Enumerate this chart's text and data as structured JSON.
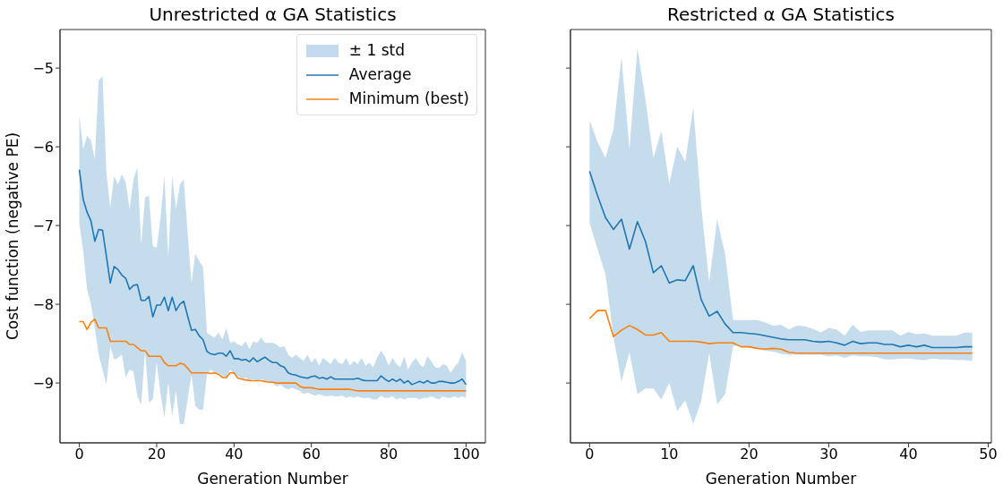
{
  "chart_data": [
    {
      "type": "line",
      "title": "Unrestricted α GA Statistics",
      "annotations": [
        "± 1 std"
      ],
      "xlabel": "Generation Number",
      "ylabel": "Cost function (negative PE)",
      "legend": "top right",
      "xlim": [
        -5,
        105
      ],
      "xticks": [
        0,
        20,
        40,
        60,
        80,
        100
      ],
      "ylim": [
        -9.76,
        -4.51
      ],
      "yticks": [
        -9,
        -8,
        -7,
        -6,
        -5
      ],
      "x": [
        0,
        1,
        2,
        3,
        4,
        5,
        6,
        7,
        8,
        9,
        10,
        11,
        12,
        13,
        14,
        15,
        16,
        17,
        18,
        19,
        20,
        21,
        22,
        23,
        24,
        25,
        26,
        27,
        28,
        29,
        30,
        31,
        32,
        33,
        34,
        35,
        36,
        37,
        38,
        39,
        40,
        41,
        42,
        43,
        44,
        45,
        46,
        47,
        48,
        49,
        50,
        51,
        52,
        53,
        54,
        55,
        56,
        57,
        58,
        59,
        60,
        61,
        62,
        63,
        64,
        65,
        66,
        67,
        68,
        69,
        70,
        71,
        72,
        73,
        74,
        75,
        76,
        77,
        78,
        79,
        80,
        81,
        82,
        83,
        84,
        85,
        86,
        87,
        88,
        89,
        90,
        91,
        92,
        93,
        94,
        95,
        96,
        97,
        98,
        99,
        100
      ],
      "series": [
        {
          "name": "Average",
          "color": "#1f77b4",
          "lower": [
            -6.98,
            -7.32,
            -7.81,
            -8.0,
            -8.3,
            -8.64,
            -8.83,
            -9.02,
            -8.53,
            -8.7,
            -8.68,
            -8.64,
            -8.93,
            -8.83,
            -8.85,
            -9.17,
            -9.27,
            -8.59,
            -9.25,
            -9.21,
            -8.74,
            -9.14,
            -9.44,
            -9.0,
            -9.42,
            -9.1,
            -9.52,
            -9.52,
            -9.21,
            -8.89,
            -9.29,
            -9.34,
            -9.34,
            -8.89,
            -8.83,
            -8.87,
            -8.87,
            -8.91,
            -8.93,
            -8.83,
            -8.89,
            -8.91,
            -8.95,
            -8.93,
            -8.97,
            -8.95,
            -8.97,
            -8.95,
            -8.97,
            -8.98,
            -9.0,
            -9.04,
            -9.02,
            -9.06,
            -9.08,
            -9.06,
            -9.08,
            -9.1,
            -9.14,
            -9.12,
            -9.14,
            -9.16,
            -9.14,
            -9.16,
            -9.17,
            -9.16,
            -9.17,
            -9.17,
            -9.16,
            -9.19,
            -9.17,
            -9.19,
            -9.17,
            -9.19,
            -9.19,
            -9.19,
            -9.21,
            -9.21,
            -9.16,
            -9.19,
            -9.19,
            -9.17,
            -9.21,
            -9.19,
            -9.21,
            -9.19,
            -9.19,
            -9.19,
            -9.21,
            -9.19,
            -9.19,
            -9.17,
            -9.19,
            -9.21,
            -9.17,
            -9.19,
            -9.19,
            -9.17,
            -9.19,
            -9.17,
            -9.19
          ],
          "upper": [
            -5.6,
            -6.03,
            -5.86,
            -5.92,
            -6.16,
            -5.16,
            -5.1,
            -6.33,
            -6.77,
            -6.37,
            -6.48,
            -6.35,
            -6.45,
            -6.79,
            -6.41,
            -6.26,
            -7.24,
            -6.64,
            -6.62,
            -7.26,
            -7.28,
            -6.9,
            -6.37,
            -7.41,
            -6.37,
            -6.79,
            -6.48,
            -6.41,
            -7.09,
            -7.73,
            -7.36,
            -7.45,
            -7.53,
            -8.36,
            -8.4,
            -8.42,
            -8.36,
            -8.45,
            -8.3,
            -8.49,
            -8.47,
            -8.51,
            -8.53,
            -8.47,
            -8.57,
            -8.47,
            -8.49,
            -8.42,
            -8.49,
            -8.49,
            -8.49,
            -8.51,
            -8.55,
            -8.53,
            -8.64,
            -8.68,
            -8.64,
            -8.68,
            -8.72,
            -8.64,
            -8.74,
            -8.68,
            -8.78,
            -8.68,
            -8.72,
            -8.76,
            -8.68,
            -8.74,
            -8.76,
            -8.68,
            -8.78,
            -8.72,
            -8.76,
            -8.68,
            -8.78,
            -8.74,
            -8.8,
            -8.68,
            -8.59,
            -8.66,
            -8.78,
            -8.68,
            -8.76,
            -8.8,
            -8.66,
            -8.83,
            -8.74,
            -8.68,
            -8.76,
            -8.8,
            -8.66,
            -8.72,
            -8.8,
            -8.81,
            -8.76,
            -8.78,
            -8.87,
            -8.8,
            -8.74,
            -8.61,
            -8.72
          ],
          "values": [
            -6.29,
            -6.67,
            -6.83,
            -6.94,
            -7.2,
            -7.05,
            -7.06,
            -7.39,
            -7.73,
            -7.52,
            -7.56,
            -7.63,
            -7.67,
            -7.81,
            -7.76,
            -7.75,
            -7.95,
            -7.95,
            -7.9,
            -8.16,
            -8.01,
            -8.01,
            -7.91,
            -8.08,
            -7.91,
            -8.08,
            -8.0,
            -7.96,
            -8.15,
            -8.33,
            -8.32,
            -8.4,
            -8.45,
            -8.6,
            -8.63,
            -8.64,
            -8.62,
            -8.62,
            -8.66,
            -8.59,
            -8.69,
            -8.69,
            -8.71,
            -8.7,
            -8.73,
            -8.68,
            -8.73,
            -8.7,
            -8.67,
            -8.71,
            -8.74,
            -8.74,
            -8.78,
            -8.8,
            -8.87,
            -8.89,
            -8.9,
            -8.92,
            -8.93,
            -8.94,
            -8.92,
            -8.91,
            -8.94,
            -8.93,
            -8.95,
            -8.92,
            -8.95,
            -8.95,
            -8.95,
            -8.95,
            -8.95,
            -8.95,
            -8.94,
            -8.96,
            -8.97,
            -8.97,
            -8.97,
            -8.97,
            -8.91,
            -8.95,
            -8.98,
            -8.95,
            -8.98,
            -8.95,
            -9.0,
            -8.97,
            -9.02,
            -9.0,
            -8.98,
            -9.0,
            -8.97,
            -9.0,
            -9.0,
            -8.98,
            -8.98,
            -8.99,
            -9.0,
            -9.0,
            -8.98,
            -8.95,
            -9.02
          ]
        },
        {
          "name": "Minimum (best)",
          "color": "#ff7f0e",
          "values": [
            -8.22,
            -8.22,
            -8.32,
            -8.23,
            -8.19,
            -8.3,
            -8.3,
            -8.3,
            -8.47,
            -8.47,
            -8.47,
            -8.47,
            -8.47,
            -8.51,
            -8.51,
            -8.55,
            -8.59,
            -8.59,
            -8.66,
            -8.66,
            -8.66,
            -8.66,
            -8.74,
            -8.78,
            -8.78,
            -8.78,
            -8.75,
            -8.76,
            -8.81,
            -8.87,
            -8.87,
            -8.87,
            -8.87,
            -8.87,
            -8.88,
            -8.87,
            -8.89,
            -8.93,
            -8.93,
            -8.87,
            -8.87,
            -8.94,
            -8.95,
            -8.96,
            -8.97,
            -8.97,
            -8.97,
            -8.97,
            -8.98,
            -8.99,
            -8.99,
            -9.0,
            -9.0,
            -9.0,
            -9.0,
            -9.0,
            -9.0,
            -9.04,
            -9.06,
            -9.06,
            -9.06,
            -9.07,
            -9.08,
            -9.08,
            -9.08,
            -9.08,
            -9.08,
            -9.08,
            -9.08,
            -9.08,
            -9.08,
            -9.09,
            -9.1,
            -9.1,
            -9.1,
            -9.1,
            -9.1,
            -9.1,
            -9.1,
            -9.1,
            -9.1,
            -9.1,
            -9.1,
            -9.1,
            -9.1,
            -9.1,
            -9.1,
            -9.1,
            -9.1,
            -9.1,
            -9.1,
            -9.1,
            -9.1,
            -9.1,
            -9.1,
            -9.1,
            -9.1,
            -9.1,
            -9.1,
            -9.1,
            -9.1
          ]
        }
      ]
    },
    {
      "type": "line",
      "title": "Restricted α GA Statistics",
      "xlabel": "Generation Number",
      "tick_labels": "x",
      "xlim": [
        -2.4,
        50.4
      ],
      "xticks": [
        0,
        10,
        20,
        30,
        40,
        50
      ],
      "ylim": [
        -9.76,
        -4.51
      ],
      "yticks": [
        -9,
        -8,
        -7,
        -6,
        -5
      ],
      "x": [
        0,
        1,
        2,
        3,
        4,
        5,
        6,
        7,
        8,
        9,
        10,
        11,
        12,
        13,
        14,
        15,
        16,
        17,
        18,
        19,
        20,
        21,
        22,
        23,
        24,
        25,
        26,
        27,
        28,
        29,
        30,
        31,
        32,
        33,
        34,
        35,
        36,
        37,
        38,
        39,
        40,
        41,
        42,
        43,
        44,
        45,
        46,
        47,
        48
      ],
      "series": [
        {
          "color": "#1f77b4",
          "lower": [
            -6.97,
            -7.3,
            -7.62,
            -8.42,
            -8.98,
            -8.61,
            -9.14,
            -9.07,
            -9.07,
            -9.21,
            -9.0,
            -9.36,
            -9.22,
            -9.52,
            -9.23,
            -8.62,
            -9.27,
            -9.14,
            -8.53,
            -8.53,
            -8.55,
            -8.56,
            -8.59,
            -8.6,
            -8.63,
            -8.64,
            -8.64,
            -8.64,
            -8.64,
            -8.64,
            -8.66,
            -8.65,
            -8.68,
            -8.65,
            -8.66,
            -8.66,
            -8.67,
            -8.7,
            -8.7,
            -8.69,
            -8.69,
            -8.7,
            -8.71,
            -8.69,
            -8.7,
            -8.7,
            -8.71,
            -8.71,
            -8.72
          ],
          "upper": [
            -5.66,
            -5.94,
            -6.14,
            -5.77,
            -4.86,
            -6.03,
            -4.75,
            -5.39,
            -6.14,
            -5.8,
            -6.47,
            -6.0,
            -6.19,
            -5.5,
            -6.75,
            -7.72,
            -6.92,
            -7.36,
            -8.2,
            -8.2,
            -8.2,
            -8.2,
            -8.23,
            -8.27,
            -8.26,
            -8.32,
            -8.27,
            -8.28,
            -8.31,
            -8.36,
            -8.3,
            -8.32,
            -8.4,
            -8.26,
            -8.35,
            -8.33,
            -8.33,
            -8.33,
            -8.33,
            -8.4,
            -8.35,
            -8.38,
            -8.37,
            -8.4,
            -8.4,
            -8.4,
            -8.4,
            -8.36,
            -8.36
          ],
          "values": [
            -6.31,
            -6.62,
            -6.9,
            -7.05,
            -6.92,
            -7.3,
            -6.95,
            -7.2,
            -7.6,
            -7.51,
            -7.73,
            -7.69,
            -7.7,
            -7.51,
            -7.94,
            -8.15,
            -8.09,
            -8.25,
            -8.36,
            -8.36,
            -8.37,
            -8.38,
            -8.4,
            -8.42,
            -8.44,
            -8.45,
            -8.45,
            -8.45,
            -8.47,
            -8.48,
            -8.47,
            -8.49,
            -8.52,
            -8.47,
            -8.5,
            -8.49,
            -8.49,
            -8.51,
            -8.51,
            -8.54,
            -8.52,
            -8.54,
            -8.52,
            -8.55,
            -8.55,
            -8.55,
            -8.55,
            -8.54,
            -8.54
          ]
        },
        {
          "color": "#ff7f0e",
          "values": [
            -8.18,
            -8.08,
            -8.08,
            -8.41,
            -8.33,
            -8.27,
            -8.32,
            -8.39,
            -8.39,
            -8.36,
            -8.47,
            -8.47,
            -8.47,
            -8.47,
            -8.48,
            -8.5,
            -8.49,
            -8.49,
            -8.49,
            -8.54,
            -8.54,
            -8.56,
            -8.57,
            -8.56,
            -8.57,
            -8.61,
            -8.62,
            -8.62,
            -8.62,
            -8.62,
            -8.62,
            -8.62,
            -8.62,
            -8.62,
            -8.62,
            -8.62,
            -8.62,
            -8.62,
            -8.62,
            -8.62,
            -8.62,
            -8.62,
            -8.62,
            -8.62,
            -8.62,
            -8.62,
            -8.62,
            -8.62,
            -8.62
          ]
        }
      ]
    }
  ]
}
